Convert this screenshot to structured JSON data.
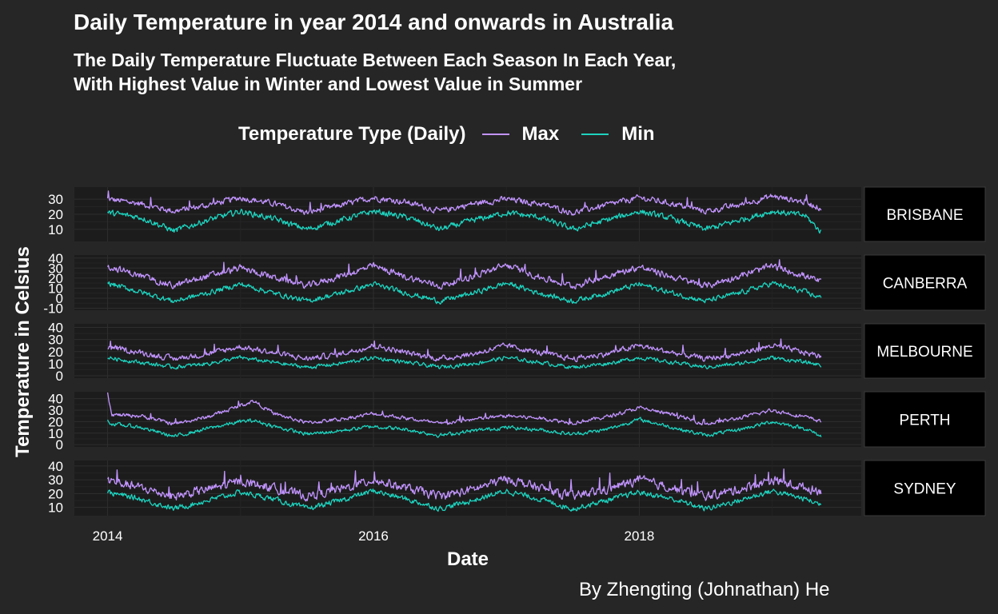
{
  "title": "Daily Temperature in year 2014 and onwards in Australia",
  "subtitle_lines": [
    "The Daily Temperature Fluctuate Between Each Season In Each Year,",
    "With Highest Value in Winter and Lowest Value in Summer"
  ],
  "legend": {
    "title": "Temperature Type (Daily)",
    "items": [
      {
        "label": "Max",
        "color": "#c294ff"
      },
      {
        "label": "Min",
        "color": "#1dd3bf"
      }
    ]
  },
  "caption": "By Zhengting (Johnathan) He",
  "colors": {
    "background": "#262626",
    "panel": "#1c1c1c",
    "strip": "#000000",
    "grid": "#2e2e2e",
    "max": "#c294ff",
    "min": "#1dd3bf"
  },
  "chart_data": {
    "type": "line",
    "title": "Daily Temperature in year 2014 and onwards in Australia",
    "xlabel": "Date",
    "ylabel": "Temperature in Celsius",
    "x_ticks": [
      "2014",
      "2016",
      "2018"
    ],
    "x_tick_values": [
      2014.0,
      2016.0,
      2018.0
    ],
    "x_range": [
      2013.75,
      2019.67
    ],
    "data_x_range": [
      2014.0,
      2019.37
    ],
    "legend_position": "top",
    "facet_strip_position": "right",
    "series_names": [
      "Max",
      "Min"
    ],
    "facets": [
      {
        "name": "BRISBANE",
        "ylim": [
          2,
          38
        ],
        "y_ticks": [
          10,
          20,
          30
        ],
        "series": [
          {
            "name": "Max",
            "x": [
              2014.0,
              2014.25,
              2014.5,
              2014.75,
              2015.0,
              2015.25,
              2015.5,
              2015.75,
              2016.0,
              2016.25,
              2016.5,
              2016.75,
              2017.0,
              2017.25,
              2017.5,
              2017.75,
              2018.0,
              2018.25,
              2018.5,
              2018.75,
              2019.0,
              2019.25,
              2019.37
            ],
            "y": [
              30,
              27,
              22,
              26,
              31,
              27,
              21,
              26,
              31,
              28,
              22,
              27,
              30,
              27,
              21,
              26,
              31,
              27,
              22,
              26,
              32,
              28,
              24
            ]
          },
          {
            "name": "Min",
            "x": [
              2014.0,
              2014.25,
              2014.5,
              2014.75,
              2015.0,
              2015.25,
              2015.5,
              2015.75,
              2016.0,
              2016.25,
              2016.5,
              2016.75,
              2017.0,
              2017.25,
              2017.5,
              2017.75,
              2018.0,
              2018.25,
              2018.5,
              2018.75,
              2019.0,
              2019.25,
              2019.37
            ],
            "y": [
              21,
              18,
              9,
              16,
              22,
              17,
              10,
              16,
              22,
              18,
              10,
              16,
              21,
              18,
              10,
              16,
              22,
              17,
              10,
              16,
              22,
              19,
              8
            ]
          }
        ]
      },
      {
        "name": "CANBERRA",
        "ylim": [
          -12,
          43
        ],
        "y_ticks": [
          -10,
          0,
          10,
          20,
          30,
          40
        ],
        "series": [
          {
            "name": "Max",
            "x": [
              2014.0,
              2014.25,
              2014.5,
              2014.75,
              2015.0,
              2015.25,
              2015.5,
              2015.75,
              2016.0,
              2016.25,
              2016.5,
              2016.75,
              2017.0,
              2017.25,
              2017.5,
              2017.75,
              2018.0,
              2018.25,
              2018.5,
              2018.75,
              2019.0,
              2019.25,
              2019.37
            ],
            "y": [
              32,
              22,
              12,
              22,
              30,
              21,
              12,
              22,
              32,
              21,
              12,
              22,
              33,
              21,
              12,
              22,
              31,
              21,
              12,
              22,
              32,
              22,
              16
            ]
          },
          {
            "name": "Min",
            "x": [
              2014.0,
              2014.25,
              2014.5,
              2014.75,
              2015.0,
              2015.25,
              2015.5,
              2015.75,
              2016.0,
              2016.25,
              2016.5,
              2016.75,
              2017.0,
              2017.25,
              2017.5,
              2017.75,
              2018.0,
              2018.25,
              2018.5,
              2018.75,
              2019.0,
              2019.25,
              2019.37
            ],
            "y": [
              15,
              6,
              -3,
              5,
              14,
              5,
              -3,
              5,
              14,
              5,
              -3,
              5,
              15,
              5,
              -3,
              5,
              14,
              5,
              -3,
              5,
              15,
              6,
              0
            ]
          }
        ]
      },
      {
        "name": "MELBOURNE",
        "ylim": [
          -2,
          43
        ],
        "y_ticks": [
          0,
          10,
          20,
          30,
          40
        ],
        "series": [
          {
            "name": "Max",
            "x": [
              2014.0,
              2014.25,
              2014.5,
              2014.75,
              2015.0,
              2015.25,
              2015.5,
              2015.75,
              2016.0,
              2016.25,
              2016.5,
              2016.75,
              2017.0,
              2017.25,
              2017.5,
              2017.75,
              2018.0,
              2018.25,
              2018.5,
              2018.75,
              2019.0,
              2019.25,
              2019.37
            ],
            "y": [
              24,
              19,
              14,
              18,
              24,
              19,
              14,
              18,
              25,
              19,
              14,
              18,
              25,
              19,
              14,
              18,
              25,
              19,
              14,
              18,
              25,
              19,
              16
            ]
          },
          {
            "name": "Min",
            "x": [
              2014.0,
              2014.25,
              2014.5,
              2014.75,
              2015.0,
              2015.25,
              2015.5,
              2015.75,
              2016.0,
              2016.25,
              2016.5,
              2016.75,
              2017.0,
              2017.25,
              2017.5,
              2017.75,
              2018.0,
              2018.25,
              2018.5,
              2018.75,
              2019.0,
              2019.25,
              2019.37
            ],
            "y": [
              15,
              11,
              7,
              10,
              15,
              11,
              7,
              10,
              15,
              11,
              7,
              10,
              15,
              11,
              7,
              10,
              15,
              11,
              7,
              10,
              15,
              11,
              9
            ]
          }
        ]
      },
      {
        "name": "PERTH",
        "ylim": [
          -2,
          46
        ],
        "y_ticks": [
          0,
          10,
          20,
          30,
          40
        ],
        "series": [
          {
            "name": "Max",
            "x": [
              2014.0,
              2014.03,
              2014.25,
              2014.5,
              2014.75,
              2015.0,
              2015.1,
              2015.25,
              2015.5,
              2015.75,
              2016.0,
              2016.25,
              2016.5,
              2016.75,
              2017.0,
              2017.25,
              2017.5,
              2017.75,
              2018.0,
              2018.25,
              2018.5,
              2018.75,
              2019.0,
              2019.25,
              2019.37
            ],
            "y": [
              44,
              26,
              25,
              18,
              24,
              34,
              38,
              27,
              19,
              22,
              27,
              23,
              18,
              22,
              25,
              23,
              19,
              24,
              32,
              26,
              18,
              23,
              30,
              24,
              20
            ]
          },
          {
            "name": "Min",
            "x": [
              2014.0,
              2014.03,
              2014.25,
              2014.5,
              2014.75,
              2015.0,
              2015.1,
              2015.25,
              2015.5,
              2015.75,
              2016.0,
              2016.25,
              2016.5,
              2016.75,
              2017.0,
              2017.25,
              2017.5,
              2017.75,
              2018.0,
              2018.25,
              2018.5,
              2018.75,
              2019.0,
              2019.25,
              2019.37
            ],
            "y": [
              21,
              18,
              15,
              7,
              14,
              20,
              21,
              16,
              9,
              12,
              16,
              13,
              8,
              12,
              15,
              13,
              9,
              13,
              22,
              15,
              8,
              13,
              20,
              14,
              7
            ]
          }
        ]
      },
      {
        "name": "SYDNEY",
        "ylim": [
          4,
          44
        ],
        "y_ticks": [
          10,
          20,
          30,
          40
        ],
        "series": [
          {
            "name": "Max",
            "x": [
              2014.0,
              2014.25,
              2014.5,
              2014.75,
              2015.0,
              2015.25,
              2015.5,
              2015.75,
              2016.0,
              2016.25,
              2016.5,
              2016.75,
              2017.0,
              2017.25,
              2017.5,
              2017.75,
              2018.0,
              2018.25,
              2018.5,
              2018.75,
              2019.0,
              2019.25,
              2019.37
            ],
            "y": [
              30,
              24,
              18,
              23,
              29,
              24,
              18,
              23,
              30,
              24,
              18,
              23,
              31,
              24,
              18,
              23,
              30,
              24,
              18,
              23,
              30,
              24,
              22
            ]
          },
          {
            "name": "Min",
            "x": [
              2014.0,
              2014.25,
              2014.5,
              2014.75,
              2015.0,
              2015.25,
              2015.5,
              2015.75,
              2016.0,
              2016.25,
              2016.5,
              2016.75,
              2017.0,
              2017.25,
              2017.5,
              2017.75,
              2018.0,
              2018.25,
              2018.5,
              2018.75,
              2019.0,
              2019.25,
              2019.37
            ],
            "y": [
              21,
              16,
              9,
              15,
              21,
              16,
              9,
              15,
              22,
              16,
              9,
              15,
              22,
              16,
              9,
              15,
              21,
              16,
              9,
              15,
              22,
              16,
              12
            ]
          }
        ]
      }
    ]
  }
}
